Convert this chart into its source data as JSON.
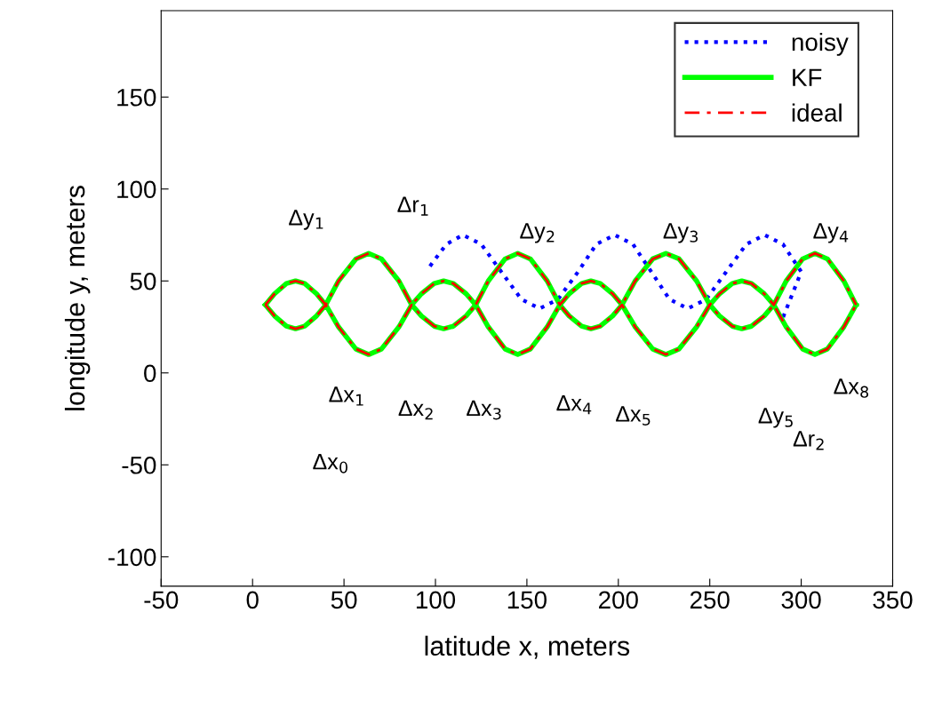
{
  "chart_data": {
    "type": "line",
    "xlabel": "latitude x, meters",
    "ylabel": "longitude y, meters",
    "xlim": [
      -50,
      350
    ],
    "xticks": [
      -50,
      0,
      50,
      100,
      150,
      200,
      250,
      300,
      350
    ],
    "ylim": [
      -116,
      197
    ],
    "yticks": [
      -100,
      -50,
      0,
      50,
      100,
      150
    ],
    "grid": false,
    "legend": "top right",
    "series": [
      {
        "name": "noisy",
        "color": "#0000ff",
        "line_style": "dotted",
        "x": [
          97,
          106,
          115,
          125,
          136,
          147,
          157,
          167,
          178,
          188,
          198,
          208,
          218,
          228,
          238,
          248,
          259,
          270,
          280,
          290,
          300,
          290
        ],
        "values": [
          58,
          70,
          75,
          70,
          55,
          40,
          35,
          40,
          55,
          70,
          75,
          70,
          55,
          40,
          35,
          40,
          55,
          70,
          75,
          70,
          55,
          30
        ]
      },
      {
        "name": "KF",
        "color": "#00ff00",
        "line_style": "solid",
        "x": [
          7,
          12,
          18.5,
          23.5,
          28.5,
          35,
          40,
          47,
          56.5,
          63.5,
          70.5,
          80,
          87,
          92.3,
          99.3,
          104.5,
          109.8,
          116.8,
          122,
          128.9,
          138.1,
          145,
          151.9,
          161.1,
          168,
          173.1,
          179.9,
          185,
          190.1,
          196.9,
          202,
          209.2,
          218.8,
          226,
          233.2,
          242.8,
          250,
          255.3,
          262.3,
          267.5,
          272.8,
          279.8,
          285,
          291.8,
          300.8,
          307.5,
          314.3,
          323.3,
          330
        ],
        "values": [
          37,
          43,
          48.6,
          50,
          48.6,
          43,
          37,
          50,
          62,
          65,
          62,
          50,
          37,
          43,
          48.6,
          50,
          48.6,
          43,
          37,
          50,
          62,
          65,
          62,
          50,
          37,
          43,
          48.6,
          50,
          48.6,
          43,
          37,
          50,
          62,
          65,
          62,
          50,
          37,
          43,
          48.6,
          50,
          48.6,
          43,
          37,
          50,
          62,
          65,
          62,
          50,
          37
        ]
      },
      {
        "color": "#00ff00",
        "line_style": "solid",
        "x": [
          7,
          12,
          18.5,
          23.5,
          28.5,
          35,
          40,
          47,
          56.5,
          63.5,
          70.5,
          80,
          87,
          92.3,
          99.3,
          104.5,
          109.8,
          116.8,
          122,
          128.9,
          138.1,
          145,
          151.9,
          161.1,
          168,
          173.1,
          179.9,
          185,
          190.1,
          196.9,
          202,
          209.2,
          218.8,
          226,
          233.2,
          242.8,
          250,
          255.3,
          262.3,
          267.5,
          272.8,
          279.8,
          285,
          291.8,
          300.8,
          307.5,
          314.3,
          323.3,
          330
        ],
        "values": [
          37,
          31,
          25.4,
          24,
          25.4,
          31,
          37,
          25,
          13,
          10,
          13,
          25,
          37,
          31,
          25.4,
          24,
          25.4,
          31,
          37,
          25,
          13,
          10,
          13,
          25,
          37,
          31,
          25.4,
          24,
          25.4,
          31,
          37,
          25,
          13,
          10,
          13,
          25,
          37,
          31,
          25.4,
          24,
          25.4,
          31,
          37,
          25,
          13,
          10,
          13,
          25,
          37
        ]
      },
      {
        "name": "ideal",
        "color": "#ff0000",
        "line_style": "dashed",
        "x": [
          7,
          12,
          18.5,
          23.5,
          28.5,
          35,
          40,
          47,
          56.5,
          63.5,
          70.5,
          80,
          87,
          92.3,
          99.3,
          104.5,
          109.8,
          116.8,
          122,
          128.9,
          138.1,
          145,
          151.9,
          161.1,
          168,
          173.1,
          179.9,
          185,
          190.1,
          196.9,
          202,
          209.2,
          218.8,
          226,
          233.2,
          242.8,
          250,
          255.3,
          262.3,
          267.5,
          272.8,
          279.8,
          285,
          291.8,
          300.8,
          307.5,
          314.3,
          323.3,
          330
        ],
        "values": [
          37,
          43,
          48.6,
          50,
          48.6,
          43,
          37,
          50,
          62,
          65,
          62,
          50,
          37,
          43,
          48.6,
          50,
          48.6,
          43,
          37,
          50,
          62,
          65,
          62,
          50,
          37,
          43,
          48.6,
          50,
          48.6,
          43,
          37,
          50,
          62,
          65,
          62,
          50,
          37,
          43,
          48.6,
          50,
          48.6,
          43,
          37,
          50,
          62,
          65,
          62,
          50,
          37
        ]
      },
      {
        "color": "#ff0000",
        "line_style": "dashed",
        "x": [
          7,
          12,
          18.5,
          23.5,
          28.5,
          35,
          40,
          47,
          56.5,
          63.5,
          70.5,
          80,
          87,
          92.3,
          99.3,
          104.5,
          109.8,
          116.8,
          122,
          128.9,
          138.1,
          145,
          151.9,
          161.1,
          168,
          173.1,
          179.9,
          185,
          190.1,
          196.9,
          202,
          209.2,
          218.8,
          226,
          233.2,
          242.8,
          250,
          255.3,
          262.3,
          267.5,
          272.8,
          279.8,
          285,
          291.8,
          300.8,
          307.5,
          314.3,
          323.3,
          330
        ],
        "values": [
          37,
          31,
          25.4,
          24,
          25.4,
          31,
          37,
          25,
          13,
          10,
          13,
          25,
          37,
          31,
          25.4,
          24,
          25.4,
          31,
          37,
          25,
          13,
          10,
          13,
          25,
          37,
          31,
          25.4,
          24,
          25.4,
          31,
          37,
          25,
          13,
          10,
          13,
          25,
          37,
          31,
          25.4,
          24,
          25.4,
          31,
          37,
          25,
          13,
          10,
          13,
          25,
          37
        ]
      }
    ],
    "annotations": [
      "Δy$_{1}$",
      "Δr$_{1}$",
      "Δy$_{2}$",
      "Δy$_{3}$",
      "Δy$_{4}$",
      "Δx$_{1}$",
      "Δx$_{2}$",
      "Δx$_{3}$",
      "Δx$_{4}$",
      "Δx$_{5}$",
      "Δy$_{5}$",
      "Δx$_{8}$",
      "Δr$_{2}$",
      "Δx$_{0}$"
    ]
  }
}
